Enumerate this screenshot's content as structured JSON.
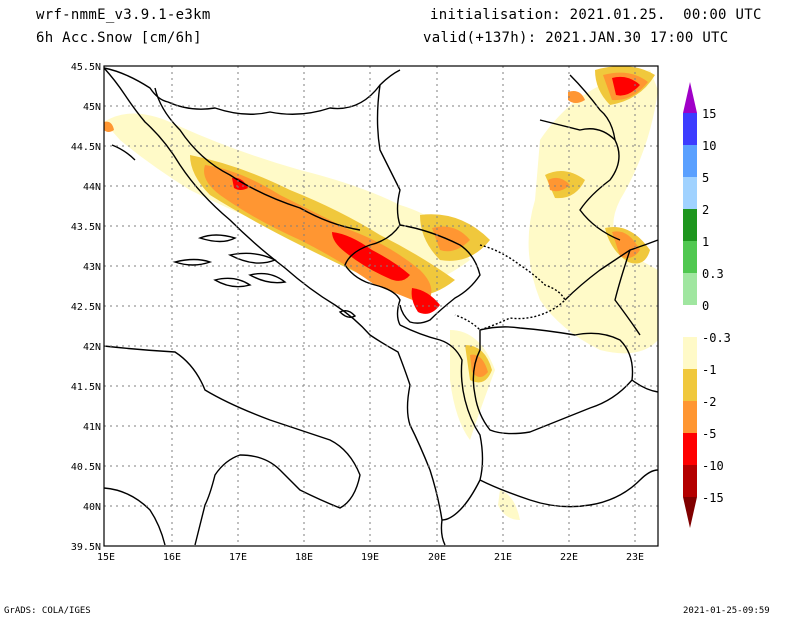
{
  "header": {
    "model": "wrf-nmmE_v3.9.1-e3km",
    "variable": "6h Acc.Snow [cm/6h]",
    "init": "initialisation: 2021.01.25.  00:00 UTC",
    "valid": "valid(+137h): 2021.JAN.30 17:00 UTC"
  },
  "footer": {
    "left": "GrADS: COLA/IGES",
    "right": "2021-01-25-09:59"
  },
  "map": {
    "lat_labels": [
      "45.5N",
      "45N",
      "44.5N",
      "44N",
      "43.5N",
      "43N",
      "42.5N",
      "42N",
      "41.5N",
      "41N",
      "40.5N",
      "40N",
      "39.5N"
    ],
    "lon_labels": [
      "15E",
      "16E",
      "17E",
      "18E",
      "19E",
      "20E",
      "21E",
      "22E",
      "23E"
    ]
  },
  "legend": {
    "labels": [
      "15",
      "10",
      "5",
      "2",
      "1",
      "0.3",
      "0",
      "-0.3",
      "-1",
      "-2",
      "-5",
      "-10",
      "-15"
    ],
    "colors": [
      "#a000c8",
      "#3c3cff",
      "#5aa0ff",
      "#a0d2ff",
      "#1e961e",
      "#50c850",
      "#a0e6a0",
      "#ffffff",
      "#fffac8",
      "#f0c83c",
      "#ff9632",
      "#ff0000",
      "#b40000",
      "#800000"
    ]
  }
}
